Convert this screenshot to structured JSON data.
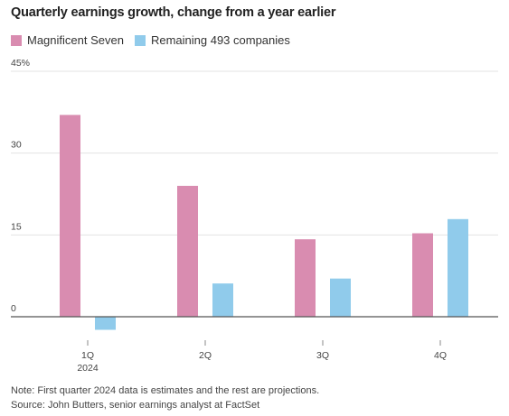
{
  "chart_data": {
    "type": "bar",
    "title": "Quarterly earnings growth, change from a year earlier",
    "categories": [
      "1Q",
      "2Q",
      "3Q",
      "4Q"
    ],
    "category_sublabels": [
      "2024",
      "",
      "",
      ""
    ],
    "series": [
      {
        "name": "Magnificent Seven",
        "values": [
          37.0,
          24.0,
          14.2,
          15.3
        ]
      },
      {
        "name": "Remaining 493 companies",
        "values": [
          -2.4,
          6.1,
          7.0,
          17.9
        ]
      }
    ],
    "y_ticks": [
      "0",
      "15",
      "30",
      "45%"
    ],
    "ylim": [
      -3,
      45
    ],
    "grid": true,
    "legend_position": "top-left",
    "colors": {
      "magnificent_seven": "#d98cb0",
      "remaining": "#90cbeb"
    }
  },
  "notes": {
    "note": "Note: First quarter 2024 data is estimates and the rest are projections.",
    "source": "Source: John Butters, senior earnings analyst at FactSet"
  }
}
